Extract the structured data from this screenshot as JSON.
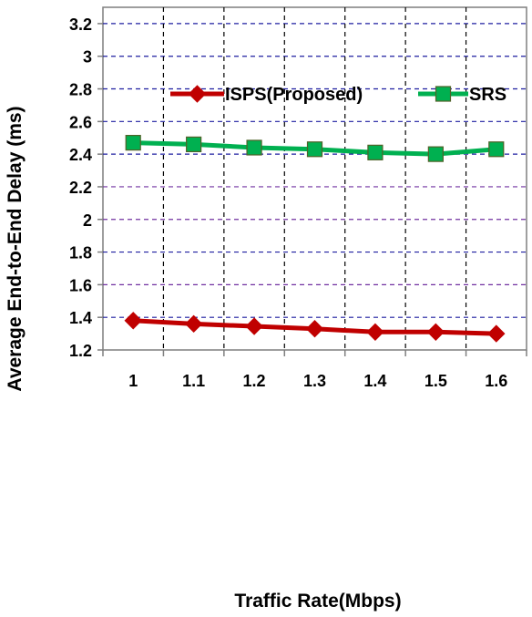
{
  "chart_data": {
    "type": "line",
    "title": "",
    "xlabel": "Traffic Rate(Mbps)",
    "ylabel": "Average End-to-End Delay (ms)",
    "categories": [
      "1",
      "1.1",
      "1.2",
      "1.3",
      "1.4",
      "1.5",
      "1.6"
    ],
    "ylim": [
      1.2,
      3.3
    ],
    "yticks": [
      "1.2",
      "1.4",
      "1.6",
      "1.8",
      "2",
      "2.2",
      "2.4",
      "2.6",
      "2.8",
      "3",
      "3.2"
    ],
    "grid": true,
    "legend_position": "top-right",
    "series": [
      {
        "name": "ISPS(Proposed)",
        "values": [
          1.38,
          1.36,
          1.345,
          1.33,
          1.31,
          1.31,
          1.3
        ],
        "color": "#C00000",
        "marker": "diamond"
      },
      {
        "name": "SRS",
        "values": [
          2.47,
          2.46,
          2.44,
          2.43,
          2.41,
          2.4,
          2.43
        ],
        "color": "#00B050",
        "marker": "square"
      }
    ]
  }
}
